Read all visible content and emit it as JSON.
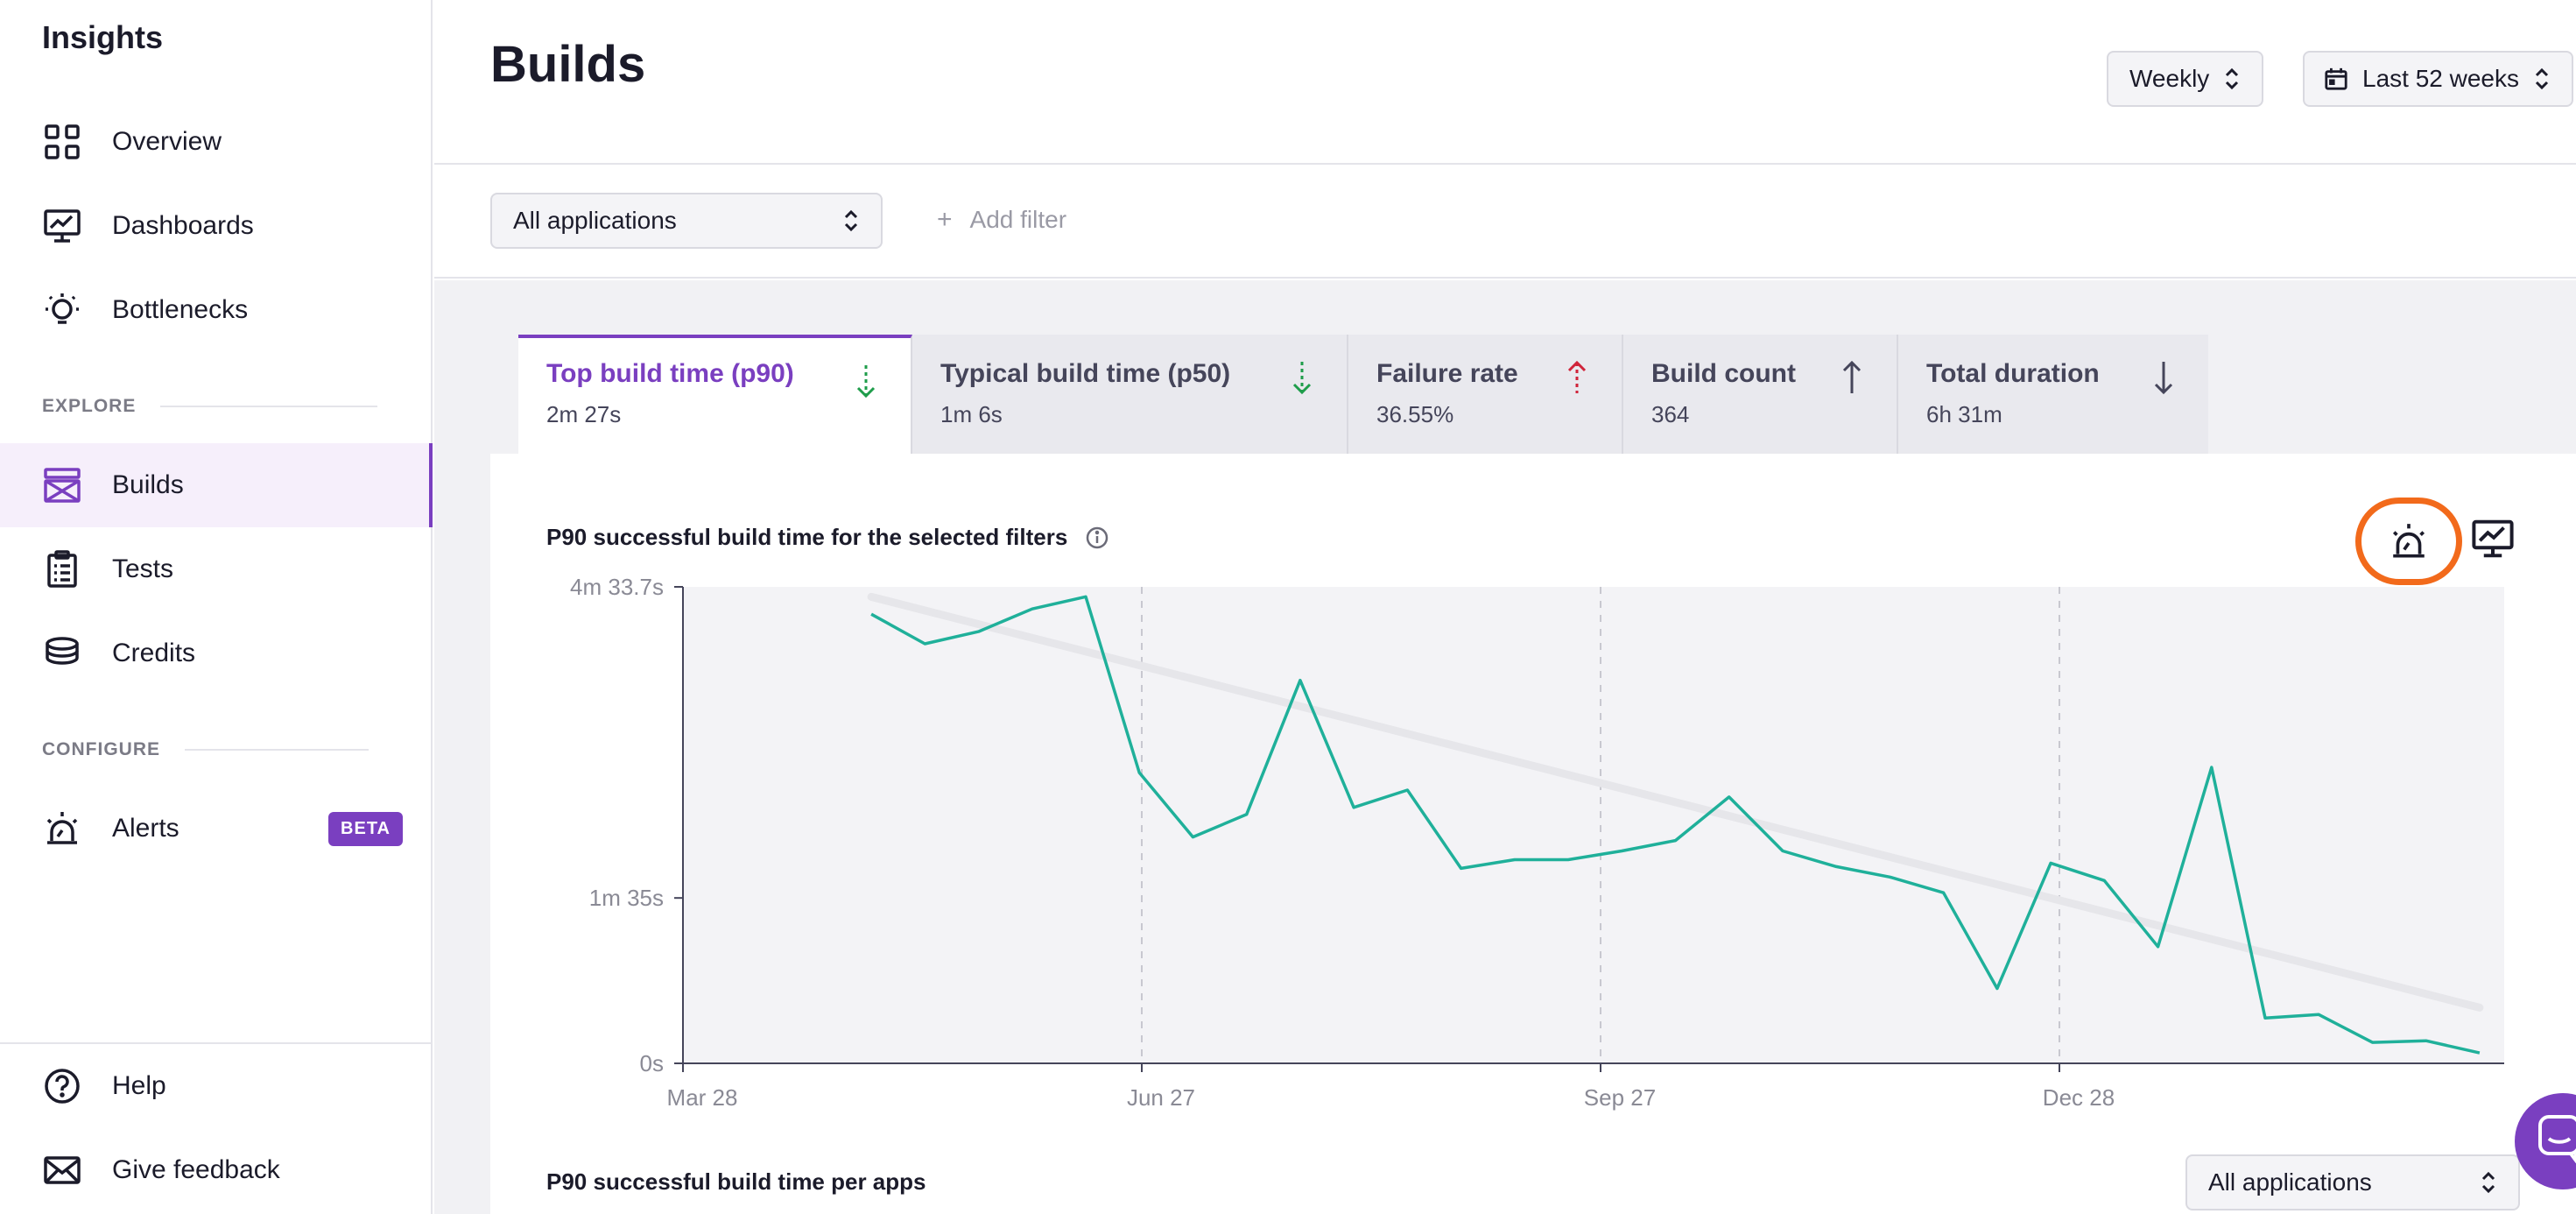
{
  "sidebar": {
    "brand": "Insights",
    "items": [
      {
        "label": "Overview",
        "icon": "grid-icon"
      },
      {
        "label": "Dashboards",
        "icon": "monitor-chart-icon"
      },
      {
        "label": "Bottlenecks",
        "icon": "lightbulb-icon"
      }
    ],
    "explore_label": "EXPLORE",
    "explore_items": [
      {
        "label": "Builds",
        "icon": "builds-icon",
        "active": true
      },
      {
        "label": "Tests",
        "icon": "clipboard-icon"
      },
      {
        "label": "Credits",
        "icon": "coins-icon"
      }
    ],
    "configure_label": "CONFIGURE",
    "configure_items": [
      {
        "label": "Alerts",
        "icon": "alarm-icon",
        "badge": "BETA"
      }
    ],
    "bottom_items": [
      {
        "label": "Help",
        "icon": "help-icon"
      },
      {
        "label": "Give feedback",
        "icon": "mail-icon"
      }
    ]
  },
  "header": {
    "title": "Builds",
    "interval_select": "Weekly",
    "range_select": "Last 52 weeks"
  },
  "filters": {
    "app_select": "All applications",
    "add_filter": "Add filter"
  },
  "tabs": [
    {
      "label": "Top build time (p90)",
      "value": "2m 27s",
      "trend": "down",
      "trend_color": "#1f9d4b",
      "active": true
    },
    {
      "label": "Typical build time (p50)",
      "value": "1m 6s",
      "trend": "down",
      "trend_color": "#1f9d4b"
    },
    {
      "label": "Failure rate",
      "value": "36.55%",
      "trend": "up",
      "trend_color": "#d0243a"
    },
    {
      "label": "Build count",
      "value": "364",
      "trend": "up",
      "trend_color": "#45455a"
    },
    {
      "label": "Total duration",
      "value": "6h 31m",
      "trend": "down",
      "trend_color": "#45455a"
    }
  ],
  "chart_title": "P90 successful build time for the selected filters",
  "chart_data": {
    "type": "line",
    "y_ticks": [
      "0s",
      "1m 35s",
      "4m 33.7s"
    ],
    "x_ticks": [
      "Mar 28",
      "Jun 27",
      "Sep 27",
      "Dec 28"
    ],
    "ylim_seconds": [
      0,
      273.7
    ],
    "series": [
      {
        "color": "#1fb09a",
        "points_seconds": [
          258,
          241,
          248,
          261,
          268,
          167,
          130,
          143,
          220,
          147,
          157,
          112,
          117,
          117,
          122,
          128,
          153,
          122,
          113,
          107,
          98,
          43,
          115,
          105,
          67,
          170,
          26,
          28,
          12,
          13,
          6
        ]
      }
    ],
    "trend_line": {
      "color": "#e6e6ea",
      "start_seconds": 268,
      "end_seconds": 32
    },
    "grid": "vertical-dashed"
  },
  "per_app_title": "P90 successful build time per apps",
  "per_app_select": "All applications",
  "colors": {
    "accent": "#7a3fc0",
    "highlight": "#f26a1b",
    "line": "#1fb09a"
  }
}
